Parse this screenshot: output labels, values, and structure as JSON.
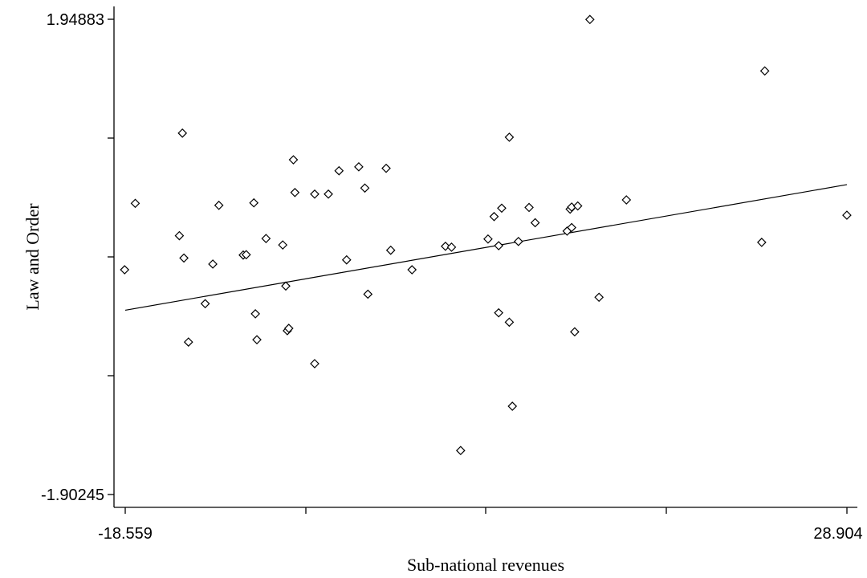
{
  "chart_data": {
    "type": "scatter",
    "xlabel": "Sub-national revenues",
    "ylabel": "Law and Order",
    "xlim": [
      -18.559,
      28.904
    ],
    "ylim": [
      -1.90245,
      1.94883
    ],
    "x_tick_labels": [
      "-18.559",
      "28.904"
    ],
    "y_tick_labels": [
      "1.94883",
      "-1.90245"
    ],
    "grid": false,
    "marker": "diamond-open",
    "fit_line": {
      "type": "linear",
      "x": [
        -18.559,
        28.904
      ],
      "y": [
        -0.409,
        0.609
      ]
    },
    "points": [
      {
        "x": -18.6,
        "y": -0.081
      },
      {
        "x": -17.9,
        "y": 0.457
      },
      {
        "x": -14.8,
        "y": 1.026
      },
      {
        "x": -15.0,
        "y": 0.195
      },
      {
        "x": -14.7,
        "y": 0.014
      },
      {
        "x": -14.4,
        "y": -0.667
      },
      {
        "x": -13.3,
        "y": -0.356
      },
      {
        "x": -12.8,
        "y": -0.035
      },
      {
        "x": -12.4,
        "y": 0.441
      },
      {
        "x": -10.8,
        "y": 0.038
      },
      {
        "x": -10.6,
        "y": 0.041
      },
      {
        "x": -10.1,
        "y": 0.461
      },
      {
        "x": -10.0,
        "y": -0.438
      },
      {
        "x": -9.9,
        "y": -0.648
      },
      {
        "x": -9.3,
        "y": 0.172
      },
      {
        "x": -8.2,
        "y": 0.12
      },
      {
        "x": -8.0,
        "y": -0.213
      },
      {
        "x": -7.9,
        "y": -0.575
      },
      {
        "x": -7.8,
        "y": -0.556
      },
      {
        "x": -7.5,
        "y": 0.81
      },
      {
        "x": -7.4,
        "y": 0.545
      },
      {
        "x": -6.1,
        "y": -0.842
      },
      {
        "x": -6.1,
        "y": 0.532
      },
      {
        "x": -5.2,
        "y": 0.532
      },
      {
        "x": -4.5,
        "y": 0.721
      },
      {
        "x": -4.0,
        "y": -0.001
      },
      {
        "x": -3.2,
        "y": 0.753
      },
      {
        "x": -2.8,
        "y": 0.581
      },
      {
        "x": -2.6,
        "y": -0.279
      },
      {
        "x": -1.4,
        "y": 0.741
      },
      {
        "x": -1.1,
        "y": 0.077
      },
      {
        "x": 0.3,
        "y": -0.081
      },
      {
        "x": 2.5,
        "y": 0.109
      },
      {
        "x": 2.9,
        "y": 0.102
      },
      {
        "x": 3.5,
        "y": -1.546
      },
      {
        "x": 5.3,
        "y": 0.168
      },
      {
        "x": 6.0,
        "y": 0.114
      },
      {
        "x": 6.0,
        "y": -0.43
      },
      {
        "x": 5.7,
        "y": 0.35
      },
      {
        "x": 6.2,
        "y": 0.418
      },
      {
        "x": 6.7,
        "y": 0.993
      },
      {
        "x": 6.7,
        "y": -0.506
      },
      {
        "x": 6.9,
        "y": -1.187
      },
      {
        "x": 7.3,
        "y": 0.148
      },
      {
        "x": 8.0,
        "y": 0.424
      },
      {
        "x": 8.4,
        "y": 0.3
      },
      {
        "x": 10.5,
        "y": 0.232
      },
      {
        "x": 10.7,
        "y": 0.41
      },
      {
        "x": 10.8,
        "y": 0.427
      },
      {
        "x": 10.8,
        "y": 0.261
      },
      {
        "x": 11.0,
        "y": -0.584
      },
      {
        "x": 11.2,
        "y": 0.436
      },
      {
        "x": 12.0,
        "y": 1.947
      },
      {
        "x": 12.6,
        "y": -0.304
      },
      {
        "x": 14.4,
        "y": 0.485
      },
      {
        "x": 23.3,
        "y": 0.141
      },
      {
        "x": 23.5,
        "y": 1.53
      },
      {
        "x": 28.9,
        "y": 0.361
      }
    ]
  }
}
